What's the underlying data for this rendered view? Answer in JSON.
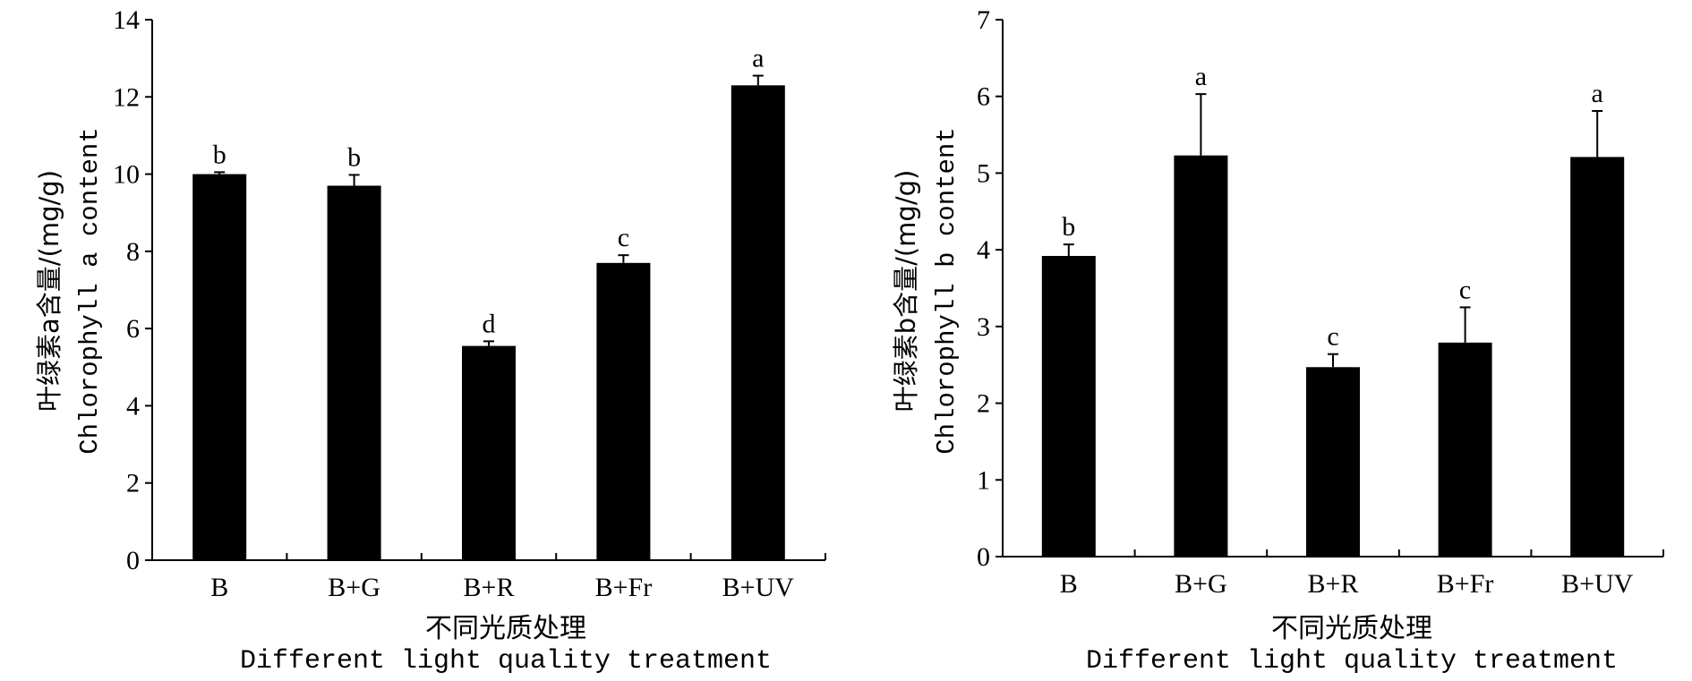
{
  "chart_data": [
    {
      "type": "bar",
      "categories": [
        "B",
        "B+G",
        "B+R",
        "B+Fr",
        "B+UV"
      ],
      "values": [
        10.0,
        9.7,
        5.55,
        7.7,
        12.3
      ],
      "errors": [
        0.05,
        0.28,
        0.12,
        0.2,
        0.25
      ],
      "significance": [
        "b",
        "b",
        "d",
        "c",
        "a"
      ],
      "ylabel_cn": "叶绿素a含量/(mg/g)",
      "ylabel_en": "Chlorophyll a content",
      "xlabel_cn": "不同光质处理",
      "xlabel_en": "Different light quality treatment",
      "ylim": [
        0,
        14
      ],
      "yticks": [
        0,
        2,
        4,
        6,
        8,
        10,
        12,
        14
      ],
      "bar_color": "#000000",
      "grid": false
    },
    {
      "type": "bar",
      "categories": [
        "B",
        "B+G",
        "B+R",
        "B+Fr",
        "B+UV"
      ],
      "values": [
        3.92,
        5.23,
        2.47,
        2.79,
        5.21
      ],
      "errors": [
        0.15,
        0.8,
        0.17,
        0.46,
        0.6
      ],
      "significance": [
        "b",
        "a",
        "c",
        "c",
        "a"
      ],
      "ylabel_cn": "叶绿素b含量/(mg/g)",
      "ylabel_en": "Chlorophyll b content",
      "xlabel_cn": "不同光质处理",
      "xlabel_en": "Different light quality treatment",
      "ylim": [
        0,
        7
      ],
      "yticks": [
        0,
        1,
        2,
        3,
        4,
        5,
        6,
        7
      ],
      "bar_color": "#000000",
      "grid": false
    }
  ]
}
